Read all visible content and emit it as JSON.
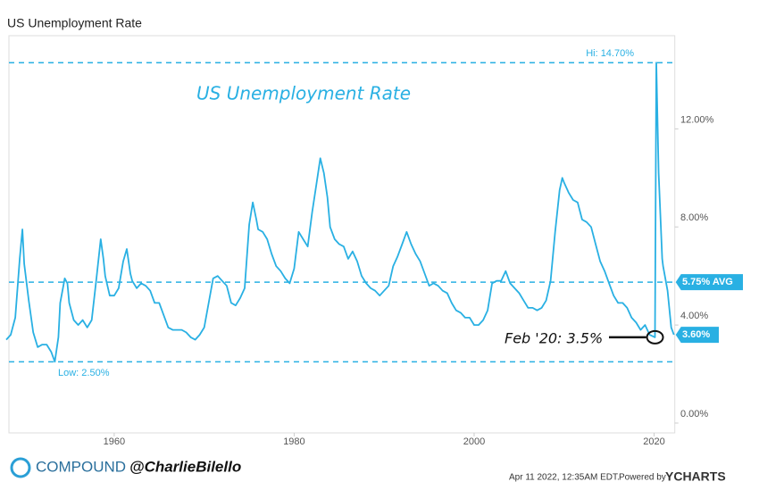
{
  "chart_data": {
    "type": "line",
    "title": "US Unemployment Rate",
    "annotation_title": "US Unemployment Rate",
    "color": "#29b0e3",
    "x": [
      1948.0,
      1948.5,
      1949.0,
      1949.5,
      1949.8,
      1950.0,
      1950.5,
      1951.0,
      1951.5,
      1952.0,
      1952.5,
      1953.0,
      1953.4,
      1953.8,
      1954.0,
      1954.5,
      1954.8,
      1955.0,
      1955.5,
      1956.0,
      1956.5,
      1957.0,
      1957.5,
      1958.0,
      1958.5,
      1958.8,
      1959.0,
      1959.5,
      1960.0,
      1960.5,
      1961.0,
      1961.4,
      1961.8,
      1962.0,
      1962.5,
      1963.0,
      1963.5,
      1964.0,
      1964.5,
      1965.0,
      1965.5,
      1966.0,
      1966.5,
      1967.0,
      1967.5,
      1968.0,
      1968.5,
      1969.0,
      1969.5,
      1970.0,
      1970.5,
      1971.0,
      1971.5,
      1972.0,
      1972.5,
      1973.0,
      1973.5,
      1974.0,
      1974.5,
      1975.0,
      1975.4,
      1975.8,
      1976.0,
      1976.5,
      1977.0,
      1977.5,
      1978.0,
      1978.5,
      1979.0,
      1979.5,
      1980.0,
      1980.5,
      1981.0,
      1981.5,
      1982.0,
      1982.5,
      1982.9,
      1983.3,
      1983.7,
      1984.0,
      1984.5,
      1985.0,
      1985.5,
      1986.0,
      1986.5,
      1987.0,
      1987.5,
      1988.0,
      1988.5,
      1989.0,
      1989.5,
      1990.0,
      1990.5,
      1991.0,
      1991.5,
      1992.0,
      1992.5,
      1993.0,
      1993.5,
      1994.0,
      1994.5,
      1995.0,
      1995.5,
      1996.0,
      1996.5,
      1997.0,
      1997.5,
      1998.0,
      1998.5,
      1999.0,
      1999.5,
      2000.0,
      2000.5,
      2001.0,
      2001.5,
      2002.0,
      2002.5,
      2003.0,
      2003.5,
      2004.0,
      2004.5,
      2005.0,
      2005.5,
      2006.0,
      2006.5,
      2007.0,
      2007.5,
      2008.0,
      2008.5,
      2009.0,
      2009.5,
      2009.8,
      2010.0,
      2010.5,
      2011.0,
      2011.5,
      2012.0,
      2012.5,
      2013.0,
      2013.5,
      2014.0,
      2014.5,
      2015.0,
      2015.5,
      2016.0,
      2016.5,
      2017.0,
      2017.5,
      2018.0,
      2018.5,
      2019.0,
      2019.5,
      2020.1,
      2020.25,
      2020.5,
      2020.9,
      2021.0,
      2021.5,
      2021.9,
      2022.2
    ],
    "values": [
      3.4,
      3.6,
      4.3,
      6.7,
      7.9,
      6.5,
      5.0,
      3.7,
      3.1,
      3.2,
      3.2,
      2.9,
      2.5,
      3.5,
      4.9,
      5.9,
      5.7,
      4.9,
      4.2,
      4.0,
      4.2,
      3.9,
      4.2,
      5.8,
      7.5,
      6.7,
      6.0,
      5.2,
      5.2,
      5.5,
      6.6,
      7.1,
      6.1,
      5.8,
      5.5,
      5.7,
      5.6,
      5.4,
      4.9,
      4.9,
      4.4,
      3.9,
      3.8,
      3.8,
      3.8,
      3.7,
      3.5,
      3.4,
      3.6,
      3.9,
      4.9,
      5.9,
      6.0,
      5.8,
      5.6,
      4.9,
      4.8,
      5.1,
      5.5,
      8.1,
      9.0,
      8.3,
      7.9,
      7.8,
      7.5,
      6.9,
      6.4,
      6.2,
      5.9,
      5.7,
      6.3,
      7.8,
      7.5,
      7.2,
      8.6,
      9.8,
      10.8,
      10.2,
      9.2,
      8.0,
      7.5,
      7.3,
      7.2,
      6.7,
      7.0,
      6.6,
      6.0,
      5.7,
      5.5,
      5.4,
      5.2,
      5.4,
      5.6,
      6.4,
      6.8,
      7.3,
      7.8,
      7.3,
      6.9,
      6.6,
      6.1,
      5.6,
      5.7,
      5.6,
      5.4,
      5.3,
      4.9,
      4.6,
      4.5,
      4.3,
      4.3,
      4.0,
      4.0,
      4.2,
      4.6,
      5.7,
      5.8,
      5.8,
      6.2,
      5.7,
      5.5,
      5.3,
      5.0,
      4.7,
      4.7,
      4.6,
      4.7,
      5.0,
      5.8,
      7.8,
      9.5,
      10.0,
      9.8,
      9.4,
      9.1,
      9.0,
      8.3,
      8.2,
      8.0,
      7.3,
      6.6,
      6.2,
      5.7,
      5.2,
      4.9,
      4.9,
      4.7,
      4.3,
      4.1,
      3.8,
      4.0,
      3.6,
      3.5,
      14.7,
      10.2,
      6.7,
      6.4,
      5.4,
      3.9,
      3.6
    ],
    "xlim": [
      1948.3,
      2022.3
    ],
    "xticks": [
      1960,
      1980,
      2000,
      2020
    ],
    "ylim": [
      -0.4,
      15.8
    ],
    "yticks": [
      {
        "value": 0,
        "label": "0.00%"
      },
      {
        "value": 4,
        "label": "4.00%"
      },
      {
        "value": 8,
        "label": "8.00%"
      },
      {
        "value": 12,
        "label": "12.00%"
      }
    ],
    "reference_lines": [
      {
        "value": 14.7,
        "label": "Hi: 14.70%"
      },
      {
        "value": 5.75,
        "label": "5.75% AVG"
      },
      {
        "value": 2.5,
        "label": "Low: 2.50%"
      }
    ],
    "last_value": {
      "value": 3.6,
      "label": "3.60%"
    },
    "callout": {
      "x": 2020.1,
      "value": 3.5,
      "text": "Feb '20: 3.5%"
    },
    "footer": {
      "brand": "COMPOUND",
      "handle": "@CharlieBilello",
      "date": "Apr 11 2022, 12:35AM EDT.",
      "powered": "Powered by",
      "vendor": "YCHARTS"
    }
  }
}
